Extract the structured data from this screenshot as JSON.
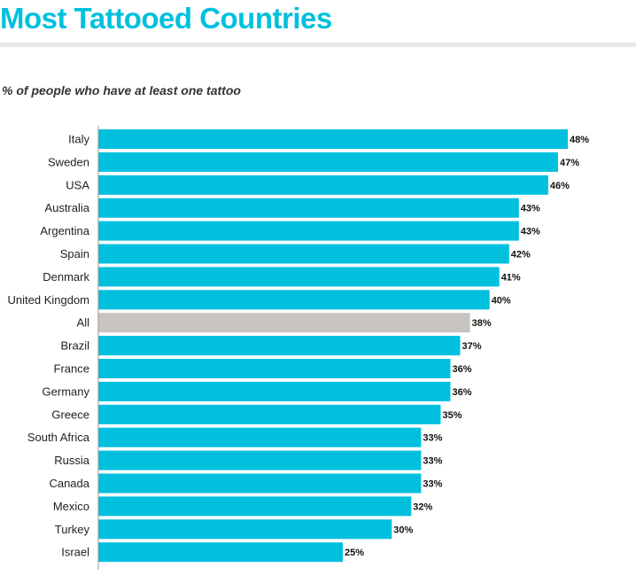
{
  "title": "Most Tattooed Countries",
  "subtitle": "% of people who have at least one tattoo",
  "colors": {
    "accent": "#00c0de",
    "highlight": "#c8c4c0",
    "axis": "#999999"
  },
  "chart_data": {
    "type": "bar",
    "orientation": "horizontal",
    "title": "Most Tattooed Countries",
    "subtitle": "% of people who have at least one tattoo",
    "xlabel": "",
    "ylabel": "",
    "xlim": [
      0,
      48
    ],
    "grid": false,
    "categories": [
      "Italy",
      "Sweden",
      "USA",
      "Australia",
      "Argentina",
      "Spain",
      "Denmark",
      "United Kingdom",
      "All",
      "Brazil",
      "France",
      "Germany",
      "Greece",
      "South Africa",
      "Russia",
      "Canada",
      "Mexico",
      "Turkey",
      "Israel"
    ],
    "values": [
      48,
      47,
      46,
      43,
      43,
      42,
      41,
      40,
      38,
      37,
      36,
      36,
      35,
      33,
      33,
      33,
      32,
      30,
      25
    ],
    "value_labels": [
      "48%",
      "47%",
      "46%",
      "43%",
      "43%",
      "42%",
      "41%",
      "40%",
      "38%",
      "37%",
      "36%",
      "36%",
      "35%",
      "33%",
      "33%",
      "33%",
      "32%",
      "30%",
      "25%"
    ],
    "highlight_category": "All"
  }
}
